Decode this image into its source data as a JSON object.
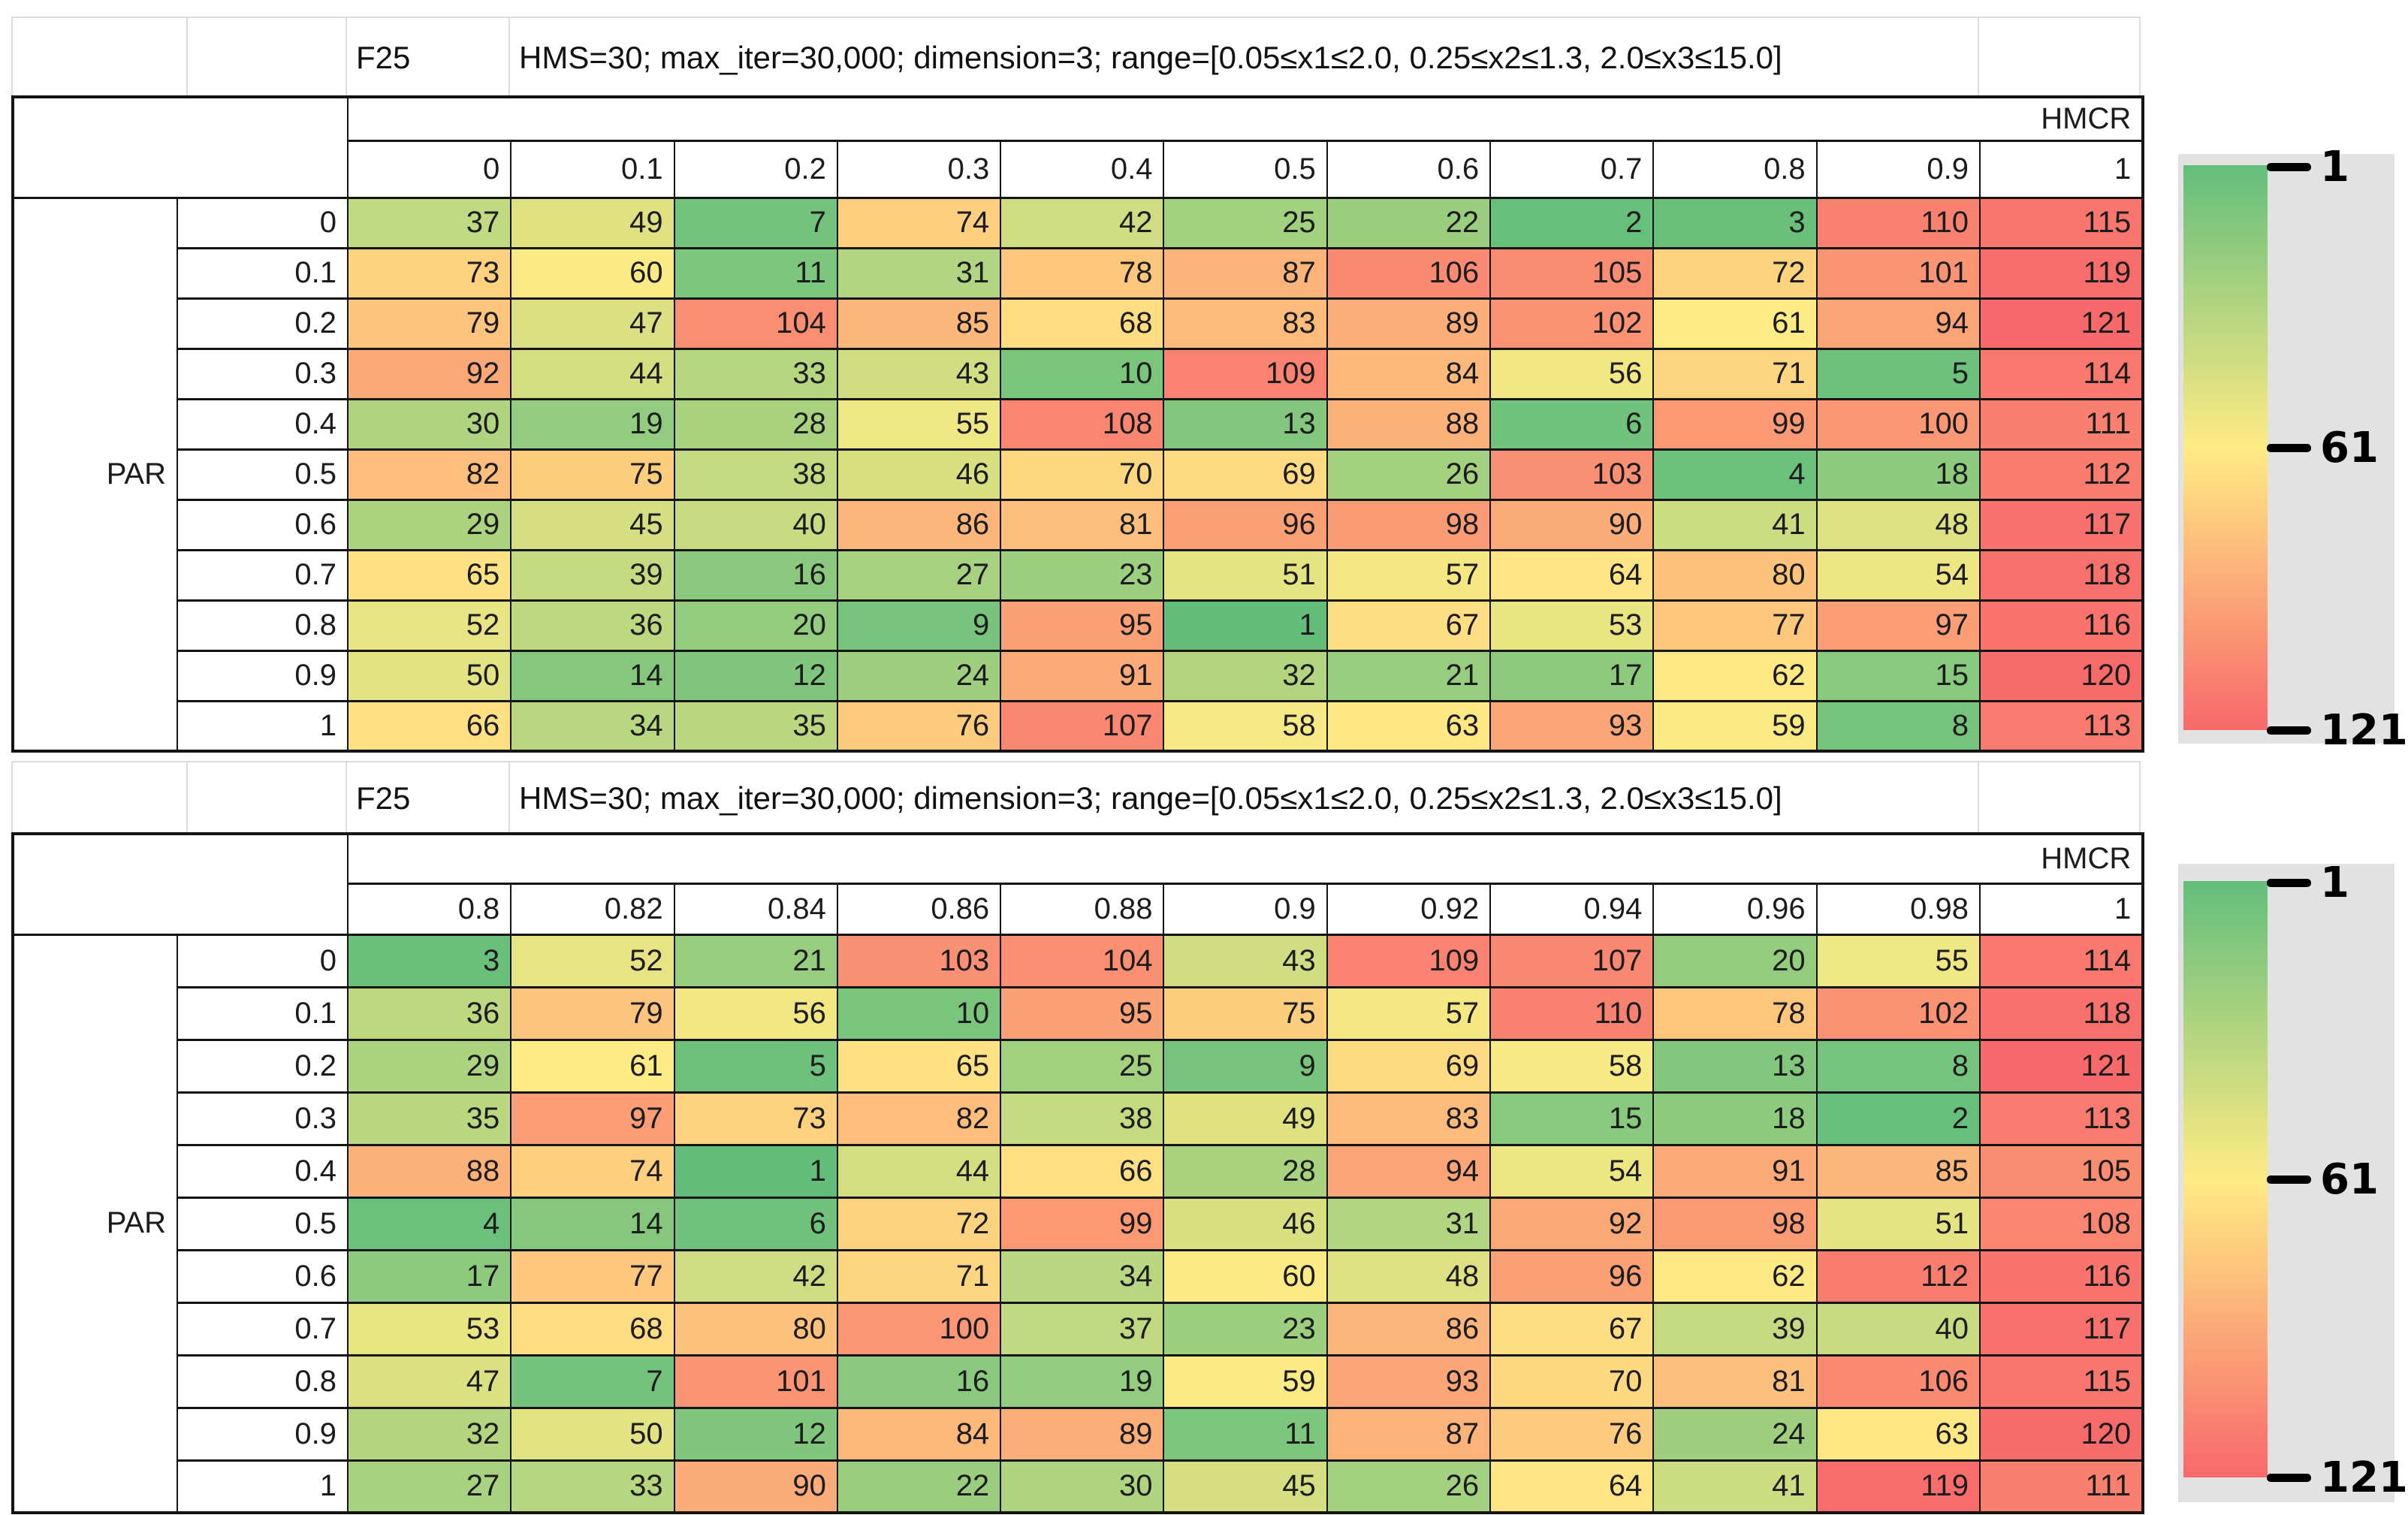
{
  "chart_data": [
    {
      "type": "heatmap",
      "title": "F25",
      "subtitle": "HMS=30; max_iter=30,000; dimension=3; range=[0.05≤x1≤2.0, 0.25≤x2≤1.3, 2.0≤x3≤15.0]",
      "x_label": "HMCR",
      "y_label": "PAR",
      "x": [
        "0",
        "0.1",
        "0.2",
        "0.3",
        "0.4",
        "0.5",
        "0.6",
        "0.7",
        "0.8",
        "0.9",
        "1"
      ],
      "y": [
        "0",
        "0.1",
        "0.2",
        "0.3",
        "0.4",
        "0.5",
        "0.6",
        "0.7",
        "0.8",
        "0.9",
        "1"
      ],
      "values": [
        [
          37,
          49,
          7,
          74,
          42,
          25,
          22,
          2,
          3,
          110,
          115
        ],
        [
          73,
          60,
          11,
          31,
          78,
          87,
          106,
          105,
          72,
          101,
          119
        ],
        [
          79,
          47,
          104,
          85,
          68,
          83,
          89,
          102,
          61,
          94,
          121
        ],
        [
          92,
          44,
          33,
          43,
          10,
          109,
          84,
          56,
          71,
          5,
          114
        ],
        [
          30,
          19,
          28,
          55,
          108,
          13,
          88,
          6,
          99,
          100,
          111
        ],
        [
          82,
          75,
          38,
          46,
          70,
          69,
          26,
          103,
          4,
          18,
          112
        ],
        [
          29,
          45,
          40,
          86,
          81,
          96,
          98,
          90,
          41,
          48,
          117
        ],
        [
          65,
          39,
          16,
          27,
          23,
          51,
          57,
          64,
          80,
          54,
          118
        ],
        [
          52,
          36,
          20,
          9,
          95,
          1,
          67,
          53,
          77,
          97,
          116
        ],
        [
          50,
          14,
          12,
          24,
          91,
          32,
          21,
          17,
          62,
          15,
          120
        ],
        [
          66,
          34,
          35,
          76,
          107,
          58,
          63,
          93,
          59,
          8,
          113
        ]
      ],
      "colorscale": {
        "min": 1,
        "mid": 61,
        "max": 121,
        "min_color": "#63BE7B",
        "mid_color": "#FFEB84",
        "max_color": "#F8696B"
      },
      "legend_ticks": [
        "1",
        "61",
        "121"
      ],
      "legend_position": "right"
    },
    {
      "type": "heatmap",
      "title": "F25",
      "subtitle": "HMS=30; max_iter=30,000; dimension=3; range=[0.05≤x1≤2.0, 0.25≤x2≤1.3, 2.0≤x3≤15.0]",
      "x_label": "HMCR",
      "y_label": "PAR",
      "x": [
        "0.8",
        "0.82",
        "0.84",
        "0.86",
        "0.88",
        "0.9",
        "0.92",
        "0.94",
        "0.96",
        "0.98",
        "1"
      ],
      "y": [
        "0",
        "0.1",
        "0.2",
        "0.3",
        "0.4",
        "0.5",
        "0.6",
        "0.7",
        "0.8",
        "0.9",
        "1"
      ],
      "values": [
        [
          3,
          52,
          21,
          103,
          104,
          43,
          109,
          107,
          20,
          55,
          114
        ],
        [
          36,
          79,
          56,
          10,
          95,
          75,
          57,
          110,
          78,
          102,
          118
        ],
        [
          29,
          61,
          5,
          65,
          25,
          9,
          69,
          58,
          13,
          8,
          121
        ],
        [
          35,
          97,
          73,
          82,
          38,
          49,
          83,
          15,
          18,
          2,
          113
        ],
        [
          88,
          74,
          1,
          44,
          66,
          28,
          94,
          54,
          91,
          85,
          105
        ],
        [
          4,
          14,
          6,
          72,
          99,
          46,
          31,
          92,
          98,
          51,
          108
        ],
        [
          17,
          77,
          42,
          71,
          34,
          60,
          48,
          96,
          62,
          112,
          116
        ],
        [
          53,
          68,
          80,
          100,
          37,
          23,
          86,
          67,
          39,
          40,
          117
        ],
        [
          47,
          7,
          101,
          16,
          19,
          59,
          93,
          70,
          81,
          106,
          115
        ],
        [
          32,
          50,
          12,
          84,
          89,
          11,
          87,
          76,
          24,
          63,
          120
        ],
        [
          27,
          33,
          90,
          22,
          30,
          45,
          26,
          64,
          41,
          119,
          111
        ]
      ],
      "colorscale": {
        "min": 1,
        "mid": 61,
        "max": 121,
        "min_color": "#63BE7B",
        "mid_color": "#FFEB84",
        "max_color": "#F8696B"
      },
      "legend_ticks": [
        "1",
        "61",
        "121"
      ],
      "legend_position": "right"
    }
  ]
}
